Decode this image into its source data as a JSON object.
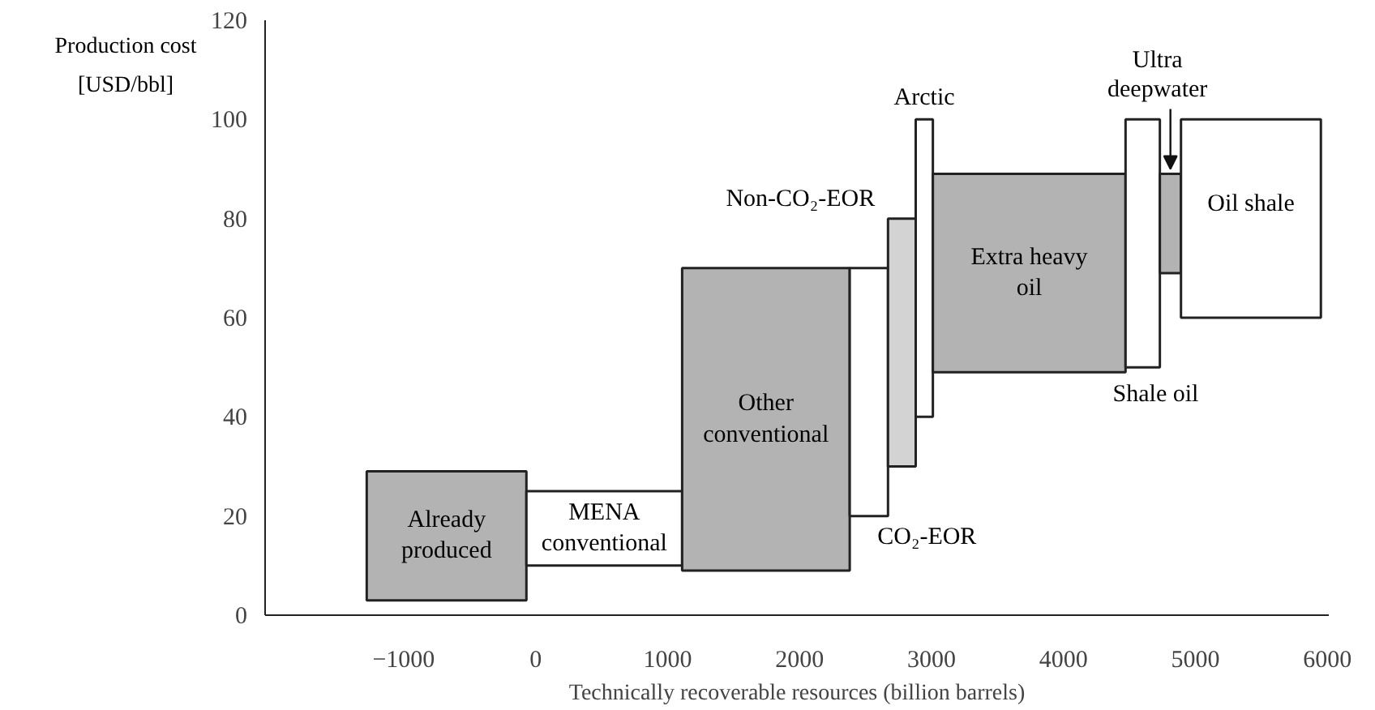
{
  "chart_data": {
    "type": "histogram",
    "xlabel": "Technically recoverable resources (billion barrels)",
    "ylabel": "Production cost\n[USD/bbl]",
    "bins": [
      -1280,
      -70,
      1110,
      2380,
      2670,
      2880,
      3010,
      4470,
      4730,
      4890,
      5950
    ],
    "base": [
      3,
      10,
      9,
      20,
      30,
      40,
      49,
      50,
      69,
      60
    ],
    "values": [
      26,
      15,
      61,
      50,
      50,
      60,
      40,
      50,
      20,
      40
    ],
    "colors": [
      "#b3b3b3",
      "#ffffff",
      "#b3b3b3",
      "#ffffff",
      "#d3d3d3",
      "#ffffff",
      "#b3b3b3",
      "#ffffff",
      "#b3b3b3",
      "#ffffff"
    ],
    "xlim": [
      -2050,
      6010
    ],
    "ylim": [
      0,
      120
    ],
    "xticks": [
      -1000,
      0,
      1000,
      2000,
      3000,
      4000,
      5000,
      6000
    ],
    "yticks": [
      0,
      20,
      40,
      60,
      80,
      100,
      120
    ],
    "annotations": [
      "Already\nproduced",
      "MENA\nconventional",
      "Other\nconventional",
      "CO₂-EOR",
      "Non-CO₂-EOR",
      "Arctic",
      "Extra heavy\noil",
      "Shale oil",
      {
        "text": "Ultra\ndeepwater",
        "x": 4810,
        "y": 89
      },
      "Oil shale"
    ]
  }
}
